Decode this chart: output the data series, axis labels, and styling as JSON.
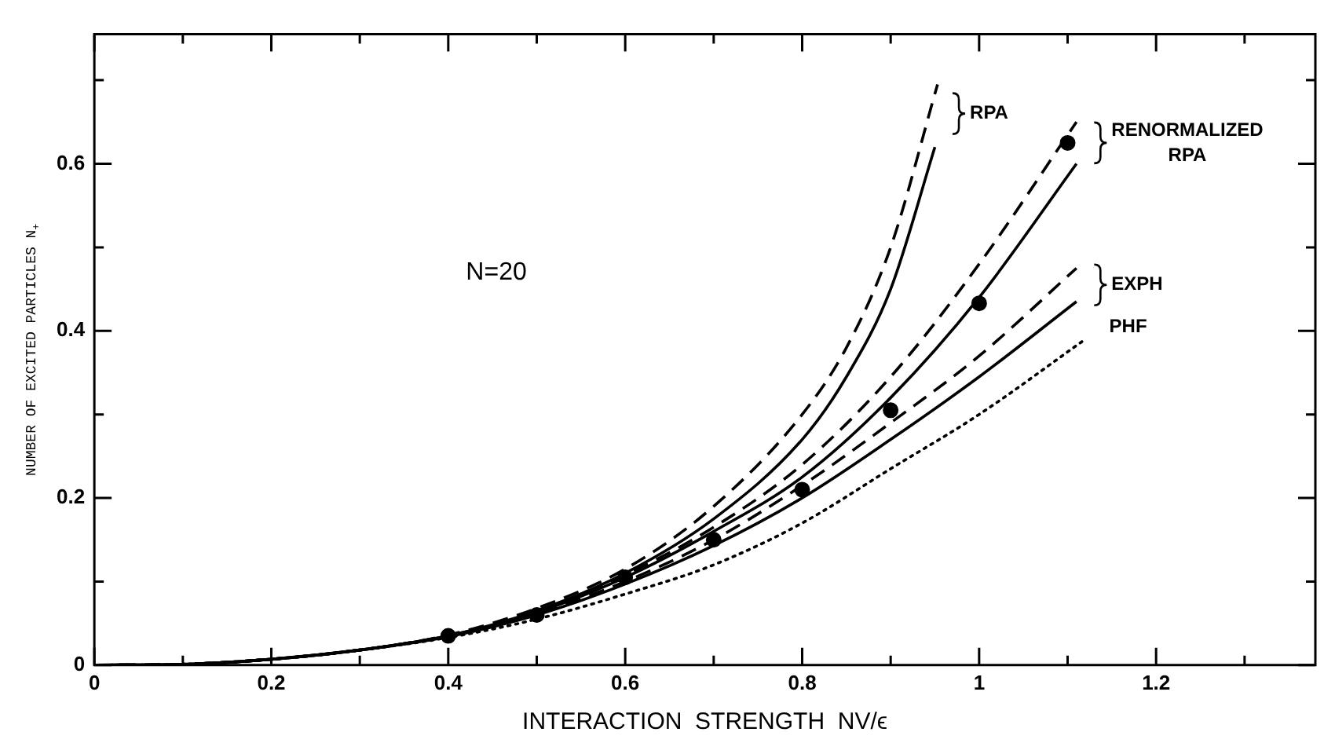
{
  "chart_data": {
    "type": "line",
    "xlabel": "INTERACTION  STRENGTH  NV/ϵ",
    "ylabel": "NUMBER OF EXCITED PARTICLES N$_{+}$",
    "xlim": [
      0,
      1.38
    ],
    "ylim": [
      0,
      0.755
    ],
    "xticks": [
      0,
      {
        "value": 0.1,
        "label": null
      },
      0.2,
      {
        "value": 0.3,
        "label": null
      },
      0.4,
      {
        "value": 0.5,
        "label": null
      },
      0.6,
      {
        "value": 0.7,
        "label": null
      },
      0.8,
      {
        "value": 0.9,
        "label": null
      },
      1.0,
      {
        "value": 1.1,
        "label": null
      },
      1.2,
      {
        "value": 1.3,
        "label": null
      }
    ],
    "yticks": [
      0,
      {
        "value": 0.1,
        "label": null
      },
      0.2,
      {
        "value": 0.3,
        "label": null
      },
      0.4,
      {
        "value": 0.5,
        "label": null
      },
      0.6,
      {
        "value": 0.7,
        "label": null
      }
    ],
    "grid": false,
    "legend": false,
    "annotations": [
      "N=20",
      "RPA",
      "RENORMALIZED RPA",
      "EXPH",
      "PHF"
    ],
    "series": [
      {
        "type": "line",
        "line_style": "dashed",
        "color": "#000000",
        "x": [
          0,
          0.1,
          0.2,
          0.3,
          0.4,
          0.5,
          0.6,
          0.7,
          0.8,
          0.85,
          0.9,
          0.953
        ],
        "values": [
          0,
          0.001,
          0.007,
          0.018,
          0.036,
          0.068,
          0.115,
          0.19,
          0.3,
          0.38,
          0.5,
          0.695
        ]
      },
      {
        "type": "line",
        "line_style": "solid",
        "color": "#000000",
        "x": [
          0,
          0.1,
          0.2,
          0.3,
          0.4,
          0.5,
          0.6,
          0.7,
          0.8,
          0.85,
          0.9,
          0.95
        ],
        "values": [
          0,
          0.001,
          0.007,
          0.018,
          0.035,
          0.065,
          0.11,
          0.175,
          0.27,
          0.345,
          0.45,
          0.62
        ]
      },
      {
        "type": "line",
        "line_style": "dashed",
        "color": "#000000",
        "x": [
          0,
          0.1,
          0.2,
          0.3,
          0.4,
          0.5,
          0.6,
          0.7,
          0.8,
          0.9,
          1.0,
          1.11
        ],
        "values": [
          0,
          0.001,
          0.007,
          0.018,
          0.035,
          0.064,
          0.108,
          0.165,
          0.24,
          0.345,
          0.48,
          0.65
        ]
      },
      {
        "type": "line",
        "line_style": "solid",
        "color": "#000000",
        "x": [
          0,
          0.1,
          0.2,
          0.3,
          0.4,
          0.5,
          0.6,
          0.7,
          0.8,
          0.9,
          1.0,
          1.11
        ],
        "values": [
          0,
          0.001,
          0.007,
          0.018,
          0.035,
          0.063,
          0.105,
          0.16,
          0.225,
          0.32,
          0.44,
          0.6
        ]
      },
      {
        "type": "line",
        "line_style": "dashed",
        "color": "#000000",
        "x": [
          0,
          0.1,
          0.2,
          0.3,
          0.4,
          0.5,
          0.6,
          0.7,
          0.8,
          0.9,
          1.0,
          1.11
        ],
        "values": [
          0,
          0.001,
          0.007,
          0.018,
          0.035,
          0.062,
          0.1,
          0.15,
          0.215,
          0.29,
          0.37,
          0.475
        ]
      },
      {
        "type": "line",
        "line_style": "solid",
        "color": "#000000",
        "x": [
          0,
          0.1,
          0.2,
          0.3,
          0.4,
          0.5,
          0.6,
          0.7,
          0.8,
          0.9,
          1.0,
          1.11
        ],
        "values": [
          0,
          0.001,
          0.007,
          0.018,
          0.034,
          0.06,
          0.097,
          0.143,
          0.2,
          0.27,
          0.345,
          0.435
        ]
      },
      {
        "type": "line",
        "line_style": "dotted",
        "color": "#000000",
        "x": [
          0,
          0.1,
          0.2,
          0.3,
          0.4,
          0.5,
          0.6,
          0.7,
          0.8,
          0.9,
          1.0,
          1.12
        ],
        "values": [
          0,
          0.001,
          0.007,
          0.018,
          0.033,
          0.055,
          0.085,
          0.12,
          0.17,
          0.235,
          0.3,
          0.39
        ]
      },
      {
        "type": "scatter",
        "marker": "circle",
        "color": "#000000",
        "x": [
          0.4,
          0.5,
          0.6,
          0.7,
          0.8,
          0.9,
          1.0,
          1.1
        ],
        "values": [
          0.035,
          0.06,
          0.105,
          0.15,
          0.21,
          0.305,
          0.433,
          0.625
        ]
      }
    ]
  }
}
